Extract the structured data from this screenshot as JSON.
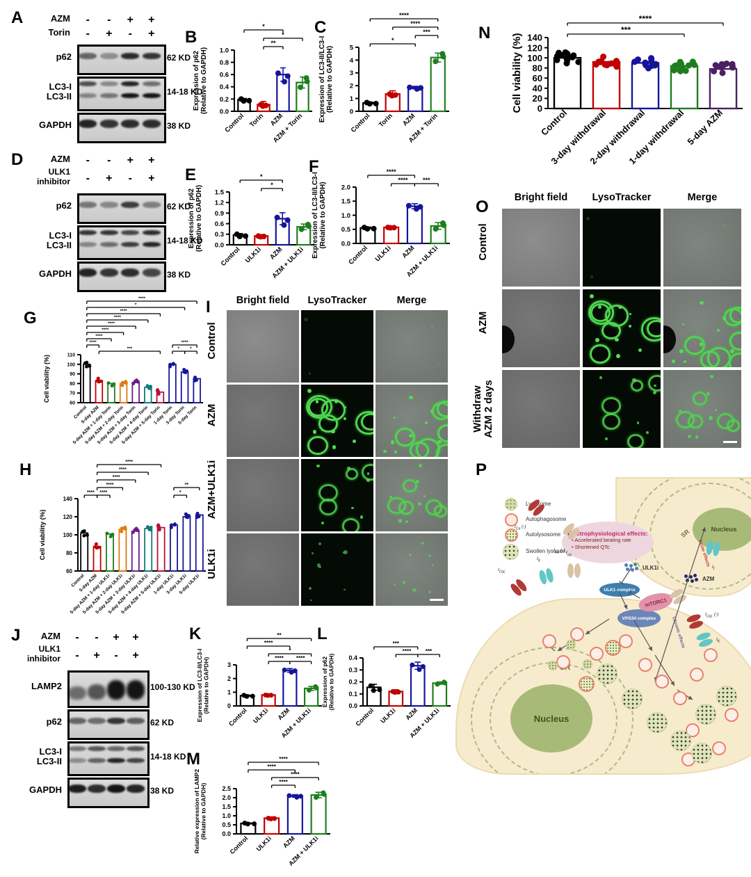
{
  "panels": {
    "a": "A",
    "b": "B",
    "c": "C",
    "d": "D",
    "e": "E",
    "f": "F",
    "g": "G",
    "h": "H",
    "i": "I",
    "j": "J",
    "k": "K",
    "l": "L",
    "m": "M",
    "n": "N",
    "o": "O",
    "p": "P"
  },
  "chart_data": {
    "b": {
      "type": "bar",
      "ylabel": [
        "Expression of p62",
        "(Relative to GAPDH)"
      ],
      "categories": [
        "Control",
        "Torin",
        "AZM",
        "AZM + Torin"
      ],
      "values": [
        0.19,
        0.11,
        0.6,
        0.47
      ],
      "errors": [
        0.02,
        0.05,
        0.11,
        0.09
      ],
      "colors": [
        "#000000",
        "#C00000",
        "#15159B",
        "#1E7E1E"
      ],
      "ylim": [
        0,
        1.0
      ],
      "ystep": 0.2,
      "ydec": 1,
      "brackets": [
        {
          "a": 0,
          "b": 2,
          "s": "*",
          "lvl": 2
        },
        {
          "a": 1,
          "b": 3,
          "s": "*",
          "lvl": 1
        },
        {
          "a": 1,
          "b": 2,
          "s": "**",
          "lvl": 0
        }
      ]
    },
    "c": {
      "type": "bar",
      "ylabel": [
        "Expression of LC3-II/LC3-I",
        "(Relative to GAPDH)"
      ],
      "categories": [
        "Control",
        "Torin",
        "AZM",
        "AZM + Torin"
      ],
      "values": [
        0.65,
        1.35,
        1.85,
        4.2
      ],
      "errors": [
        0.06,
        0.25,
        0.1,
        0.35
      ],
      "colors": [
        "#000000",
        "#C00000",
        "#15159B",
        "#1E7E1E"
      ],
      "ylim": [
        0,
        5
      ],
      "ystep": 1,
      "ydec": 0,
      "brackets": [
        {
          "a": 0,
          "b": 2,
          "s": "*",
          "lvl": 0
        },
        {
          "a": 2,
          "b": 3,
          "s": "***",
          "lvl": 1
        },
        {
          "a": 1,
          "b": 3,
          "s": "****",
          "lvl": 2
        },
        {
          "a": 0,
          "b": 3,
          "s": "****",
          "lvl": 3
        }
      ]
    },
    "e": {
      "type": "bar",
      "ylabel": [
        "Expression of p62",
        "(Relative to GAPDH)"
      ],
      "categories": [
        "Control",
        "ULK1i",
        "AZM",
        "AZM + ULK1i"
      ],
      "values": [
        0.28,
        0.25,
        0.74,
        0.51
      ],
      "errors": [
        0.04,
        0.04,
        0.17,
        0.08
      ],
      "colors": [
        "#000000",
        "#C00000",
        "#15159B",
        "#1E7E1E"
      ],
      "ylim": [
        0,
        1.5
      ],
      "ystep": 0.3,
      "ydec": 1,
      "brackets": [
        {
          "a": 1,
          "b": 2,
          "s": "*",
          "lvl": 0
        },
        {
          "a": 0,
          "b": 2,
          "s": "*",
          "lvl": 1
        }
      ]
    },
    "f": {
      "type": "bar",
      "ylabel": [
        "Expression of LC3-II/LC3-I",
        "(Relative to GAPDH)"
      ],
      "categories": [
        "Control",
        "ULK1i",
        "AZM",
        "AZM + ULK1i"
      ],
      "values": [
        0.55,
        0.57,
        1.32,
        0.62
      ],
      "errors": [
        0.03,
        0.03,
        0.09,
        0.12
      ],
      "colors": [
        "#000000",
        "#C00000",
        "#15159B",
        "#1E7E1E"
      ],
      "ylim": [
        0,
        2.0
      ],
      "ystep": 0.5,
      "ydec": 1,
      "brackets": [
        {
          "a": 1,
          "b": 2,
          "s": "****",
          "lvl": 0
        },
        {
          "a": 2,
          "b": 3,
          "s": "***",
          "lvl": 0
        },
        {
          "a": 0,
          "b": 2,
          "s": "****",
          "lvl": 1
        }
      ]
    },
    "g": {
      "type": "bar",
      "ylabel": [
        "Cell viability (%)"
      ],
      "categories": [
        "Control",
        "5-day AZM",
        "5-day AZM + 1-day Torin",
        "5-day AZM + 2-day Torin",
        "5-day AZM + 3-day Torin",
        "5-day AZM + 4-day Torin",
        "5-day AZM + 5-day Torin",
        "1-day Torin",
        "3-day Torin",
        "5-day Torin"
      ],
      "values": [
        100,
        83,
        80,
        80,
        81,
        76,
        71,
        100,
        92,
        85
      ],
      "colors": [
        "#000000",
        "#C00000",
        "#1E7E1E",
        "#E07B13",
        "#6A1B8A",
        "#0F7B7B",
        "#B5123C",
        "#15159B",
        "#15159B",
        "#15159B"
      ],
      "ylim": [
        60,
        110
      ],
      "ystep": 10,
      "ydec": 0,
      "ndots": 4,
      "spread": 2.5,
      "brackets": [
        {
          "a": 1,
          "b": 6,
          "s": "***",
          "lvl": 0
        },
        {
          "a": 7,
          "b": 8,
          "s": "*",
          "lvl": 0
        },
        {
          "a": 8,
          "b": 9,
          "s": "*",
          "lvl": 0
        },
        {
          "a": 7,
          "b": 9,
          "s": "****",
          "lvl": 1
        },
        {
          "a": 0,
          "b": 1,
          "s": "****",
          "lvl": 1
        },
        {
          "a": 0,
          "b": 2,
          "s": "****",
          "lvl": 2
        },
        {
          "a": 0,
          "b": 3,
          "s": "****",
          "lvl": 3
        },
        {
          "a": 0,
          "b": 4,
          "s": "****",
          "lvl": 4
        },
        {
          "a": 0,
          "b": 5,
          "s": "****",
          "lvl": 5
        },
        {
          "a": 0,
          "b": 6,
          "s": "****",
          "lvl": 6
        },
        {
          "a": 0,
          "b": 8,
          "s": "*",
          "lvl": 7
        },
        {
          "a": 0,
          "b": 9,
          "s": "****",
          "lvl": 8
        }
      ]
    },
    "h": {
      "type": "bar",
      "ylabel": [
        "Cell viability (%)"
      ],
      "categories": [
        "Control",
        "5-day AZM",
        "5-day AZM + 1-day ULK1i",
        "5-day AZM + 2-day ULK1i",
        "5-day AZM + 3-day ULK1i",
        "5-day AZM + 4-day ULK1i",
        "5-day AZM + 5-day ULK1i",
        "1-day ULK1i",
        "3-day ULK1i",
        "5-day ULK1i"
      ],
      "values": [
        102,
        87,
        101,
        106,
        104,
        107,
        108,
        111,
        120,
        122
      ],
      "colors": [
        "#000000",
        "#C00000",
        "#1E7E1E",
        "#E07B13",
        "#6A1B8A",
        "#0F7B7B",
        "#B5123C",
        "#15159B",
        "#15159B",
        "#15159B"
      ],
      "ylim": [
        60,
        140
      ],
      "ystep": 20,
      "ydec": 0,
      "ndots": 4,
      "spread": 3,
      "brackets": [
        {
          "a": 0,
          "b": 1,
          "s": "****",
          "lvl": 0
        },
        {
          "a": 1,
          "b": 2,
          "s": "****",
          "lvl": 0
        },
        {
          "a": 1,
          "b": 3,
          "s": "****",
          "lvl": 1
        },
        {
          "a": 1,
          "b": 4,
          "s": "****",
          "lvl": 2
        },
        {
          "a": 1,
          "b": 5,
          "s": "****",
          "lvl": 3
        },
        {
          "a": 1,
          "b": 6,
          "s": "****",
          "lvl": 4
        },
        {
          "a": 7,
          "b": 8,
          "s": "*",
          "lvl": 0
        },
        {
          "a": 7,
          "b": 9,
          "s": "**",
          "lvl": 1
        }
      ]
    },
    "k": {
      "type": "bar",
      "ylabel": [
        "Expression of LC3-II/LC3-I",
        "(Relative to GAPDH)"
      ],
      "categories": [
        "Control",
        "ULK1i",
        "AZM",
        "AZM + ULK1i"
      ],
      "values": [
        0.75,
        0.8,
        2.6,
        1.28
      ],
      "errors": [
        0.05,
        0.06,
        0.13,
        0.15
      ],
      "colors": [
        "#000000",
        "#C00000",
        "#15159B",
        "#1E7E1E"
      ],
      "ylim": [
        0,
        3
      ],
      "ystep": 1,
      "ydec": 0,
      "brackets": [
        {
          "a": 1,
          "b": 2,
          "s": "****",
          "lvl": 0
        },
        {
          "a": 2,
          "b": 3,
          "s": "****",
          "lvl": 0
        },
        {
          "a": 1,
          "b": 3,
          "s": "*",
          "lvl": 1
        },
        {
          "a": 0,
          "b": 2,
          "s": "****",
          "lvl": 2
        },
        {
          "a": 0,
          "b": 3,
          "s": "**",
          "lvl": 3
        }
      ]
    },
    "l": {
      "type": "bar",
      "ylabel": [
        "Expression of p62",
        "(Relative to GAPDH)"
      ],
      "categories": [
        "Control",
        "ULK1i",
        "AZM",
        "AZM + ULK1i"
      ],
      "values": [
        0.155,
        0.12,
        0.335,
        0.19
      ],
      "errors": [
        0.025,
        0.015,
        0.03,
        0.01
      ],
      "colors": [
        "#000000",
        "#C00000",
        "#15159B",
        "#1E7E1E"
      ],
      "ylim": [
        0,
        0.4
      ],
      "ystep": 0.1,
      "ydec": 1,
      "brackets": [
        {
          "a": 1,
          "b": 2,
          "s": "****",
          "lvl": 0
        },
        {
          "a": 2,
          "b": 3,
          "s": "***",
          "lvl": 0
        },
        {
          "a": 0,
          "b": 2,
          "s": "***",
          "lvl": 1
        }
      ]
    },
    "m": {
      "type": "bar",
      "ylabel": [
        "Relative expression of LAMP2",
        "(Relative to GAPDH)"
      ],
      "categories": [
        "Control",
        "ULK1i",
        "AZM",
        "AZM + ULK1i"
      ],
      "values": [
        0.58,
        0.87,
        2.1,
        2.15
      ],
      "errors": [
        0.03,
        0.07,
        0.07,
        0.15
      ],
      "colors": [
        "#000000",
        "#C00000",
        "#15159B",
        "#1E7E1E"
      ],
      "ylim": [
        0,
        2.5
      ],
      "ystep": 0.5,
      "ydec": 1,
      "brackets": [
        {
          "a": 1,
          "b": 2,
          "s": "****",
          "lvl": 0
        },
        {
          "a": 1,
          "b": 3,
          "s": "****",
          "lvl": 1
        },
        {
          "a": 0,
          "b": 2,
          "s": "****",
          "lvl": 2
        },
        {
          "a": 0,
          "b": 3,
          "s": "****",
          "lvl": 3
        }
      ]
    },
    "n": {
      "type": "bar",
      "ylabel": [
        "Cell viability (%)"
      ],
      "categories": [
        "Control",
        "3-day withdrawal",
        "2-day withdrawal",
        "1-day withdrawal",
        "5-day AZM"
      ],
      "values": [
        100,
        92,
        90,
        84,
        78
      ],
      "colors": [
        "#000000",
        "#C00000",
        "#15159B",
        "#1E7E1E",
        "#4B1F62"
      ],
      "ylim": [
        0,
        140
      ],
      "ystep": 20,
      "ydec": 0,
      "ndots": 14,
      "spread": 11,
      "brackets": [
        {
          "a": 0,
          "b": 3,
          "s": "***",
          "lvl": 0
        },
        {
          "a": 0,
          "b": 4,
          "s": "****",
          "lvl": 1
        }
      ]
    }
  },
  "blots": {
    "a": {
      "treatments": [
        {
          "label": "AZM",
          "signs": [
            "-",
            "-",
            "+",
            "+"
          ]
        },
        {
          "label": "Torin",
          "signs": [
            "-",
            "+",
            "-",
            "+"
          ]
        }
      ],
      "rows": [
        {
          "label": "p62",
          "kd": "62 KD",
          "h": 38,
          "bands": [
            0.5,
            0.25,
            0.85,
            0.8
          ]
        },
        {
          "label": "LC3-I\nLC3-II",
          "kd": "14-18 KD",
          "h": 44,
          "bands": [
            0.65,
            0.3,
            0.9,
            0.45
          ],
          "bands2": [
            0.3,
            0.4,
            1,
            1
          ]
        },
        {
          "label": "GAPDH",
          "kd": "38 KD",
          "h": 38,
          "bands": [
            0.9,
            0.8,
            0.85,
            0.85
          ]
        }
      ]
    },
    "d": {
      "treatments": [
        {
          "label": "AZM",
          "signs": [
            "-",
            "-",
            "+",
            "+"
          ]
        },
        {
          "label": "ULK1\ninhibitor",
          "signs": [
            "-",
            "+",
            "-",
            "+"
          ]
        }
      ],
      "rows": [
        {
          "label": "p62",
          "kd": "62 KD",
          "h": 38,
          "bands": [
            0.4,
            0.3,
            0.75,
            0.35
          ]
        },
        {
          "label": "LC3-I\nLC3-II",
          "kd": "14-18 KD",
          "h": 44,
          "bands": [
            0.8,
            0.8,
            0.7,
            0.85
          ],
          "bands2": [
            0.3,
            0.45,
            0.75,
            0.9
          ]
        },
        {
          "label": "GAPDH",
          "kd": "38 KD",
          "h": 38,
          "bands": [
            0.9,
            0.8,
            0.85,
            0.7
          ]
        }
      ]
    },
    "j": {
      "treatments": [
        {
          "label": "AZM",
          "signs": [
            "-",
            "-",
            "+",
            "+"
          ]
        },
        {
          "label": "ULK1\ninhibitor",
          "signs": [
            "-",
            "+",
            "-",
            "+"
          ]
        }
      ],
      "rows": [
        {
          "label": "LAMP2",
          "kd": "100-130 KD",
          "h": 48,
          "big": true,
          "bands": [
            0.45,
            0.6,
            1,
            1
          ]
        },
        {
          "label": "p62",
          "kd": "62 KD",
          "h": 38,
          "bands": [
            0.5,
            0.45,
            0.8,
            0.55
          ]
        },
        {
          "label": "LC3-I\nLC3-II",
          "kd": "14-18 KD",
          "h": 44,
          "bands": [
            0.4,
            0.6,
            0.5,
            0.6
          ],
          "bands2": [
            0.25,
            0.5,
            0.9,
            0.7
          ]
        },
        {
          "label": "GAPDH",
          "kd": "38 KD",
          "h": 38,
          "bands": [
            0.95,
            0.85,
            1,
            0.9
          ]
        }
      ]
    }
  },
  "micro": {
    "i": {
      "headers": [
        "Bright field",
        "LysoTracker",
        "Merge"
      ],
      "rows": [
        {
          "label": "Control",
          "level": "none"
        },
        {
          "label": "AZM",
          "level": "high"
        },
        {
          "label": "AZM+ULK1i",
          "level": "medium"
        },
        {
          "label": "ULK1i",
          "level": "low"
        }
      ]
    },
    "o": {
      "headers": [
        "Bright field",
        "LysoTracker",
        "Merge"
      ],
      "rows": [
        {
          "label": "Control",
          "level": "none"
        },
        {
          "label": "AZM",
          "level": "high",
          "dark_blob": true
        },
        {
          "label": "Withdraw\nAZM 2 days",
          "level": "medium"
        }
      ]
    }
  },
  "diagram": {
    "legend": [
      {
        "label": "Lysosome"
      },
      {
        "label": "Autophagosome"
      },
      {
        "label": "Autolysosome"
      },
      {
        "label": "Swollen lysosome"
      }
    ],
    "effects": {
      "title": "Electrophysiological effects:",
      "items": [
        "Accelerated beating rate",
        "Shortened QTc"
      ]
    },
    "labels": {
      "nucleus_top": "Nucleus",
      "sr_top": "SR",
      "nucleus_bottom": "Nucleus",
      "sr_bottom": "SR",
      "ulk1i": "ULK1i",
      "azm": "AZM",
      "ulk1_complex": "ULK1 complex",
      "vps34_complex": "VPS34 complex",
      "mtorc1": "mTORC1",
      "acute": "Acute effects",
      "chronic": "Chronic effects",
      "ch_ical": "I_CaL",
      "ch_ik": "I_K",
      "ch_ina": "I_Na",
      "ch_ica_m": "I_Ca (-)",
      "ch_ina_m": "I_Na (-)",
      "ch_if": "I_f",
      "ch_ical_m": "I_CaL (-)",
      "ch_ik2": "I_K"
    }
  }
}
